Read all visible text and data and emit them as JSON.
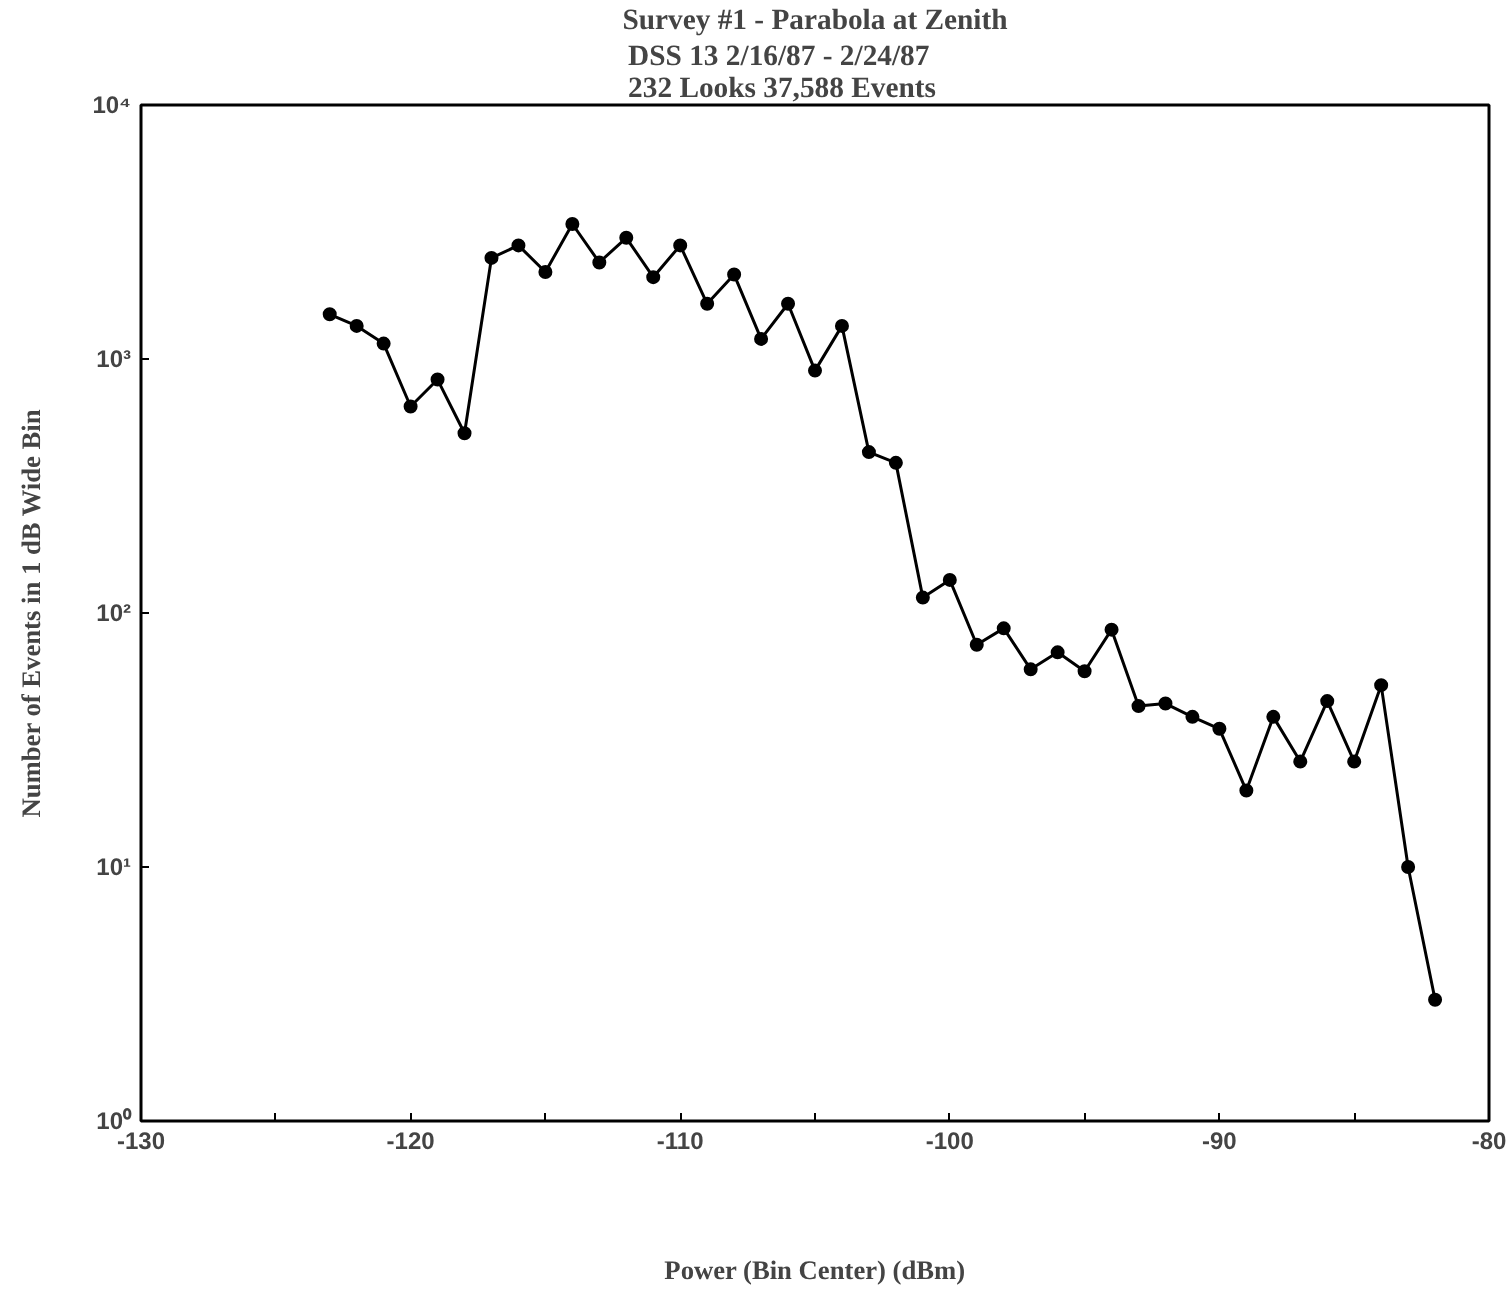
{
  "chart_data": {
    "type": "line",
    "title": "Survey #1 - Parabola at Zenith",
    "subtitle": "DSS 13          2/16/87 - 2/24/87\n232 Looks          37,588 Events",
    "xlabel": "Power (Bin Center) (dBm)",
    "ylabel": "Number of Events in 1 dB Wide Bin",
    "x": [
      -123,
      -122,
      -121,
      -120,
      -119,
      -118,
      -117,
      -116,
      -115,
      -114,
      -113,
      -112,
      -111,
      -110,
      -109,
      -108,
      -107,
      -106,
      -105,
      -104,
      -103,
      -102,
      -101,
      -100,
      -99,
      -98,
      -97,
      -96,
      -95,
      -94,
      -93,
      -92,
      -91,
      -90,
      -89,
      -88,
      -87,
      -86,
      -85,
      -84,
      -83,
      -82
    ],
    "series": [
      {
        "color": "#000000",
        "values": [
          1500,
          1350,
          1150,
          650,
          830,
          510,
          2500,
          2800,
          2200,
          3400,
          2400,
          3000,
          2100,
          2800,
          1650,
          2150,
          1200,
          1650,
          900,
          1350,
          430,
          390,
          115,
          135,
          75,
          87,
          60,
          70,
          59,
          86,
          43,
          44,
          39,
          35,
          20,
          39,
          26,
          45,
          26,
          52,
          10,
          3
        ]
      }
    ],
    "xlim": [
      -130,
      -80
    ],
    "xticks": [
      -130,
      {
        "value": -125,
        "label": null
      },
      -120,
      {
        "value": -115,
        "label": null
      },
      -110,
      {
        "value": -105,
        "label": null
      },
      -100,
      {
        "value": -95,
        "label": null
      },
      -90,
      {
        "value": -85,
        "label": null
      },
      -80
    ],
    "ylim": [
      1,
      10000
    ],
    "yticks": [
      {
        "value": 1,
        "label": "10⁰"
      },
      {
        "value": 10,
        "label": "10¹"
      },
      {
        "value": 100,
        "label": "10²"
      },
      {
        "value": 1000,
        "label": "10³"
      },
      {
        "value": 10000,
        "label": "10⁴"
      }
    ],
    "log": "y",
    "grid": false,
    "marker": "circle",
    "line_style": "solid"
  }
}
